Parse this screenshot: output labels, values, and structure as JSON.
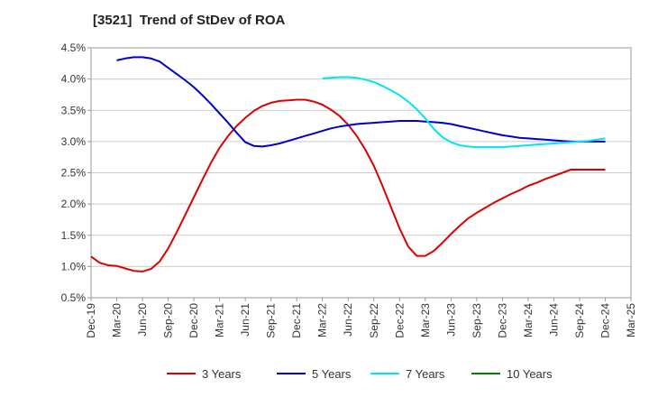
{
  "chart_data": {
    "type": "line",
    "title": "[3521]  Trend of StDev of ROA",
    "xlabel": "",
    "ylabel": "",
    "ylim": [
      0.5,
      4.5
    ],
    "y_ticks": [
      "0.5%",
      "1.0%",
      "1.5%",
      "2.0%",
      "2.5%",
      "3.0%",
      "3.5%",
      "4.0%",
      "4.5%"
    ],
    "y_tick_values": [
      0.5,
      1.0,
      1.5,
      2.0,
      2.5,
      3.0,
      3.5,
      4.0,
      4.5
    ],
    "x_ticks": [
      "Dec-19",
      "Mar-20",
      "Jun-20",
      "Sep-20",
      "Dec-20",
      "Mar-21",
      "Jun-21",
      "Sep-21",
      "Dec-21",
      "Mar-22",
      "Jun-22",
      "Sep-22",
      "Dec-22",
      "Mar-23",
      "Jun-23",
      "Sep-23",
      "Dec-23",
      "Mar-24",
      "Jun-24",
      "Sep-24",
      "Dec-24",
      "Mar-25"
    ],
    "grid": "horizontal",
    "legend_position": "bottom",
    "series": [
      {
        "name": "3 Years",
        "color": "#dd0000",
        "x": [
          "Dec-19",
          "Jan-20",
          "Feb-20",
          "Mar-20",
          "Apr-20",
          "May-20",
          "Jun-20",
          "Jul-20",
          "Aug-20",
          "Sep-20",
          "Oct-20",
          "Nov-20",
          "Dec-20",
          "Jan-21",
          "Feb-21",
          "Mar-21",
          "Apr-21",
          "May-21",
          "Jun-21",
          "Jul-21",
          "Aug-21",
          "Sep-21",
          "Oct-21",
          "Nov-21",
          "Dec-21",
          "Jan-22",
          "Feb-22",
          "Mar-22",
          "Apr-22",
          "May-22",
          "Jun-22",
          "Jul-22",
          "Aug-22",
          "Sep-22",
          "Oct-22",
          "Nov-22",
          "Dec-22",
          "Jan-23",
          "Feb-23",
          "Mar-23",
          "Apr-23",
          "May-23",
          "Jun-23",
          "Jul-23",
          "Aug-23",
          "Sep-23",
          "Oct-23",
          "Nov-23",
          "Dec-23",
          "Jan-24",
          "Feb-24",
          "Mar-24",
          "Apr-24",
          "May-24",
          "Jun-24",
          "Jul-24",
          "Aug-24",
          "Sep-24",
          "Oct-24",
          "Nov-24",
          "Dec-24"
        ],
        "values": [
          1.16,
          1.06,
          1.02,
          1.01,
          0.97,
          0.93,
          0.92,
          0.96,
          1.08,
          1.29,
          1.55,
          1.83,
          2.11,
          2.39,
          2.66,
          2.9,
          3.09,
          3.25,
          3.38,
          3.49,
          3.57,
          3.62,
          3.65,
          3.66,
          3.67,
          3.67,
          3.64,
          3.59,
          3.51,
          3.41,
          3.27,
          3.09,
          2.87,
          2.61,
          2.29,
          1.95,
          1.61,
          1.32,
          1.17,
          1.17,
          1.25,
          1.38,
          1.52,
          1.65,
          1.77,
          1.86,
          1.94,
          2.02,
          2.09,
          2.16,
          2.22,
          2.29,
          2.34,
          2.4,
          2.45,
          2.5,
          2.55,
          2.55,
          2.55,
          2.55,
          2.55
        ]
      },
      {
        "name": "5 Years",
        "color": "#0000cc",
        "x": [
          "Dec-19",
          "Jan-20",
          "Feb-20",
          "Mar-20",
          "Apr-20",
          "May-20",
          "Jun-20",
          "Jul-20",
          "Aug-20",
          "Sep-20",
          "Oct-20",
          "Nov-20",
          "Dec-20",
          "Jan-21",
          "Feb-21",
          "Mar-21",
          "Apr-21",
          "May-21",
          "Jun-21",
          "Jul-21",
          "Aug-21",
          "Sep-21",
          "Oct-21",
          "Nov-21",
          "Dec-21",
          "Jan-22",
          "Feb-22",
          "Mar-22",
          "Apr-22",
          "May-22",
          "Jun-22",
          "Jul-22",
          "Aug-22",
          "Sep-22",
          "Oct-22",
          "Nov-22",
          "Dec-22",
          "Jan-23",
          "Feb-23",
          "Mar-23",
          "Apr-23",
          "May-23",
          "Jun-23",
          "Jul-23",
          "Aug-23",
          "Sep-23",
          "Oct-23",
          "Nov-23",
          "Dec-23",
          "Jan-24",
          "Feb-24",
          "Mar-24",
          "Apr-24",
          "May-24",
          "Jun-24",
          "Jul-24",
          "Aug-24",
          "Sep-24",
          "Oct-24",
          "Nov-24",
          "Dec-24"
        ],
        "values": [
          null,
          null,
          null,
          4.3,
          4.33,
          4.35,
          4.35,
          4.33,
          4.28,
          4.18,
          4.08,
          3.98,
          3.87,
          3.74,
          3.6,
          3.45,
          3.3,
          3.14,
          2.99,
          2.93,
          2.92,
          2.94,
          2.97,
          3.01,
          3.05,
          3.09,
          3.13,
          3.17,
          3.21,
          3.24,
          3.26,
          3.28,
          3.29,
          3.3,
          3.31,
          3.32,
          3.33,
          3.33,
          3.33,
          3.32,
          3.31,
          3.3,
          3.28,
          3.25,
          3.22,
          3.19,
          3.16,
          3.13,
          3.1,
          3.08,
          3.06,
          3.05,
          3.04,
          3.03,
          3.02,
          3.01,
          3.0,
          3.0,
          3.0,
          3.0,
          3.0
        ]
      },
      {
        "name": "7 Years",
        "color": "#00e5ee",
        "x": [
          "Dec-19",
          "Jan-20",
          "Feb-20",
          "Mar-20",
          "Apr-20",
          "May-20",
          "Jun-20",
          "Jul-20",
          "Aug-20",
          "Sep-20",
          "Oct-20",
          "Nov-20",
          "Dec-20",
          "Jan-21",
          "Feb-21",
          "Mar-21",
          "Apr-21",
          "May-21",
          "Jun-21",
          "Jul-21",
          "Aug-21",
          "Sep-21",
          "Oct-21",
          "Nov-21",
          "Dec-21",
          "Jan-22",
          "Feb-22",
          "Mar-22",
          "Apr-22",
          "May-22",
          "Jun-22",
          "Jul-22",
          "Aug-22",
          "Sep-22",
          "Oct-22",
          "Nov-22",
          "Dec-22",
          "Jan-23",
          "Feb-23",
          "Mar-23",
          "Apr-23",
          "May-23",
          "Jun-23",
          "Jul-23",
          "Aug-23",
          "Sep-23",
          "Oct-23",
          "Nov-23",
          "Dec-23",
          "Jan-24",
          "Feb-24",
          "Mar-24",
          "Apr-24",
          "May-24",
          "Jun-24",
          "Jul-24",
          "Aug-24",
          "Sep-24",
          "Oct-24",
          "Nov-24",
          "Dec-24"
        ],
        "values": [
          null,
          null,
          null,
          null,
          null,
          null,
          null,
          null,
          null,
          null,
          null,
          null,
          null,
          null,
          null,
          null,
          null,
          null,
          null,
          null,
          null,
          null,
          null,
          null,
          null,
          null,
          null,
          4.01,
          4.02,
          4.03,
          4.03,
          4.02,
          3.99,
          3.95,
          3.89,
          3.82,
          3.74,
          3.64,
          3.52,
          3.37,
          3.2,
          3.07,
          2.99,
          2.94,
          2.92,
          2.91,
          2.91,
          2.91,
          2.91,
          2.92,
          2.93,
          2.94,
          2.95,
          2.96,
          2.97,
          2.98,
          2.99,
          3.0,
          3.01,
          3.03,
          3.05
        ]
      },
      {
        "name": "10 Years",
        "color": "#008000",
        "x": [],
        "values": []
      }
    ]
  }
}
